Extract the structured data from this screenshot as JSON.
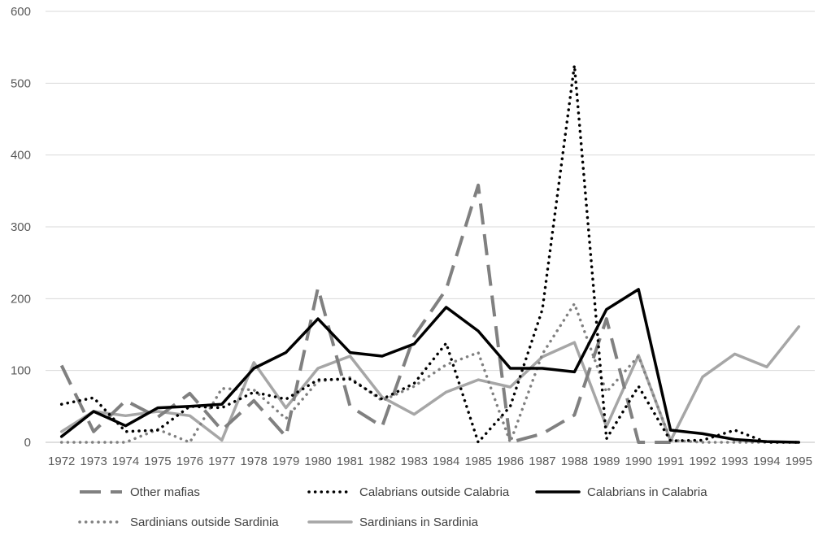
{
  "chart_data": {
    "type": "line",
    "title": "",
    "xlabel": "",
    "ylabel": "",
    "ylim": [
      0,
      600
    ],
    "yticks": [
      0,
      100,
      200,
      300,
      400,
      500,
      600
    ],
    "grid": "horizontal",
    "legend_position": "bottom",
    "categories": [
      "1972",
      "1973",
      "1974",
      "1975",
      "1976",
      "1977",
      "1978",
      "1979",
      "1980",
      "1981",
      "1982",
      "1983",
      "1984",
      "1985",
      "1986",
      "1987",
      "1988",
      "1989",
      "1990",
      "1991",
      "1992",
      "1993",
      "1994",
      "1995"
    ],
    "series": [
      {
        "name": "Other mafias",
        "style": "long-dash",
        "color": "#808080",
        "values": [
          107,
          15,
          58,
          35,
          68,
          17,
          58,
          8,
          215,
          50,
          22,
          148,
          213,
          358,
          0,
          12,
          38,
          172,
          0,
          0,
          null,
          null,
          null,
          null
        ]
      },
      {
        "name": "Calabrians outside Calabria",
        "style": "dot",
        "color": "#000000",
        "values": [
          53,
          62,
          15,
          17,
          50,
          48,
          70,
          60,
          87,
          88,
          60,
          82,
          138,
          0,
          50,
          185,
          525,
          5,
          78,
          2,
          3,
          17,
          0,
          0
        ]
      },
      {
        "name": "Calabrians in Calabria",
        "style": "solid-bold",
        "color": "#000000",
        "values": [
          8,
          43,
          23,
          48,
          50,
          53,
          103,
          125,
          172,
          125,
          120,
          137,
          188,
          155,
          103,
          103,
          98,
          185,
          213,
          17,
          12,
          4,
          1,
          0
        ]
      },
      {
        "name": "Sardinians outside Sardinia",
        "style": "dot",
        "color": "#808080",
        "values": [
          0,
          0,
          0,
          18,
          0,
          75,
          73,
          33,
          85,
          90,
          58,
          78,
          108,
          125,
          0,
          123,
          193,
          70,
          120,
          3,
          0,
          0,
          0,
          0
        ]
      },
      {
        "name": "Sardinians in Sardinia",
        "style": "solid",
        "color": "#a6a6a6",
        "values": [
          15,
          43,
          37,
          43,
          37,
          3,
          111,
          48,
          103,
          120,
          63,
          39,
          70,
          87,
          77,
          119,
          139,
          22,
          121,
          2,
          91,
          123,
          105,
          161
        ]
      }
    ]
  }
}
